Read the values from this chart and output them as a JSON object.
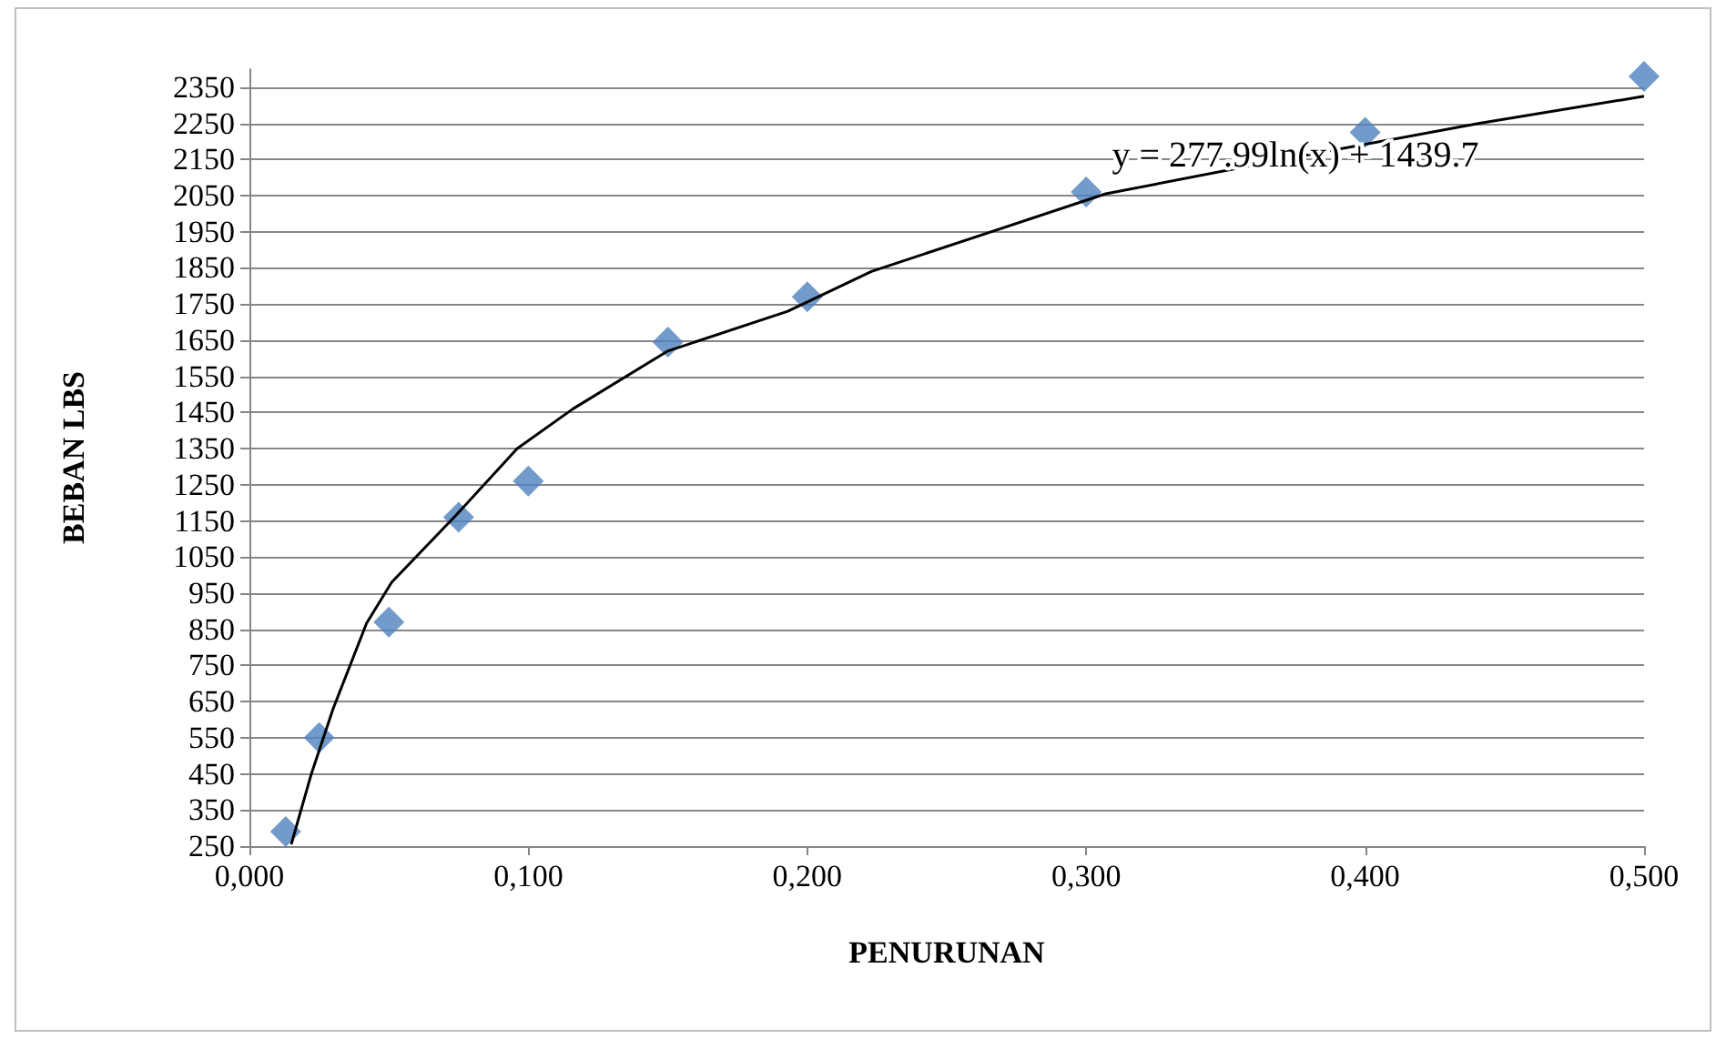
{
  "chart_data": {
    "type": "scatter",
    "xlabel": "PENURUNAN",
    "ylabel": "BEBAN LBS",
    "xlim": [
      0,
      0.5
    ],
    "xticks": [
      {
        "value": 0,
        "label": "0,000"
      },
      {
        "value": 0.1,
        "label": "0,100"
      },
      {
        "value": 0.2,
        "label": "0,200"
      },
      {
        "value": 0.3,
        "label": "0,300"
      },
      {
        "value": 0.4,
        "label": "0,400"
      },
      {
        "value": 0.5,
        "label": "0,500"
      }
    ],
    "ylim": [
      250,
      2400
    ],
    "yticks": [
      250,
      350,
      450,
      550,
      650,
      750,
      850,
      950,
      1050,
      1150,
      1250,
      1350,
      1450,
      1550,
      1650,
      1750,
      1850,
      1950,
      2050,
      2150,
      2250,
      2350
    ],
    "grid": "y",
    "marker": "diamond",
    "series": [
      {
        "color": "#4f81bd",
        "x": [
          0.013,
          0.025,
          0.05,
          0.075,
          0.1,
          0.15,
          0.2,
          0.3,
          0.4,
          0.5
        ],
        "values": [
          290,
          550,
          870,
          1160,
          1260,
          1645,
          1770,
          2060,
          2225,
          2380
        ]
      },
      {
        "type": "line",
        "color": "#000000",
        "marker": "none",
        "x": [
          0.015,
          0.022,
          0.03,
          0.042,
          0.051,
          0.074,
          0.096,
          0.116,
          0.15,
          0.193,
          0.223,
          0.307,
          0.374,
          0.441,
          0.5
        ],
        "values": [
          255,
          445,
          630,
          867,
          980,
          1165,
          1350,
          1460,
          1620,
          1730,
          1840,
          2055,
          2155,
          2250,
          2325
        ]
      }
    ],
    "annotations": [
      {
        "text": "y = 277.99ln(x) + 1439.7",
        "x": 0.375,
        "y": 2160
      }
    ]
  }
}
